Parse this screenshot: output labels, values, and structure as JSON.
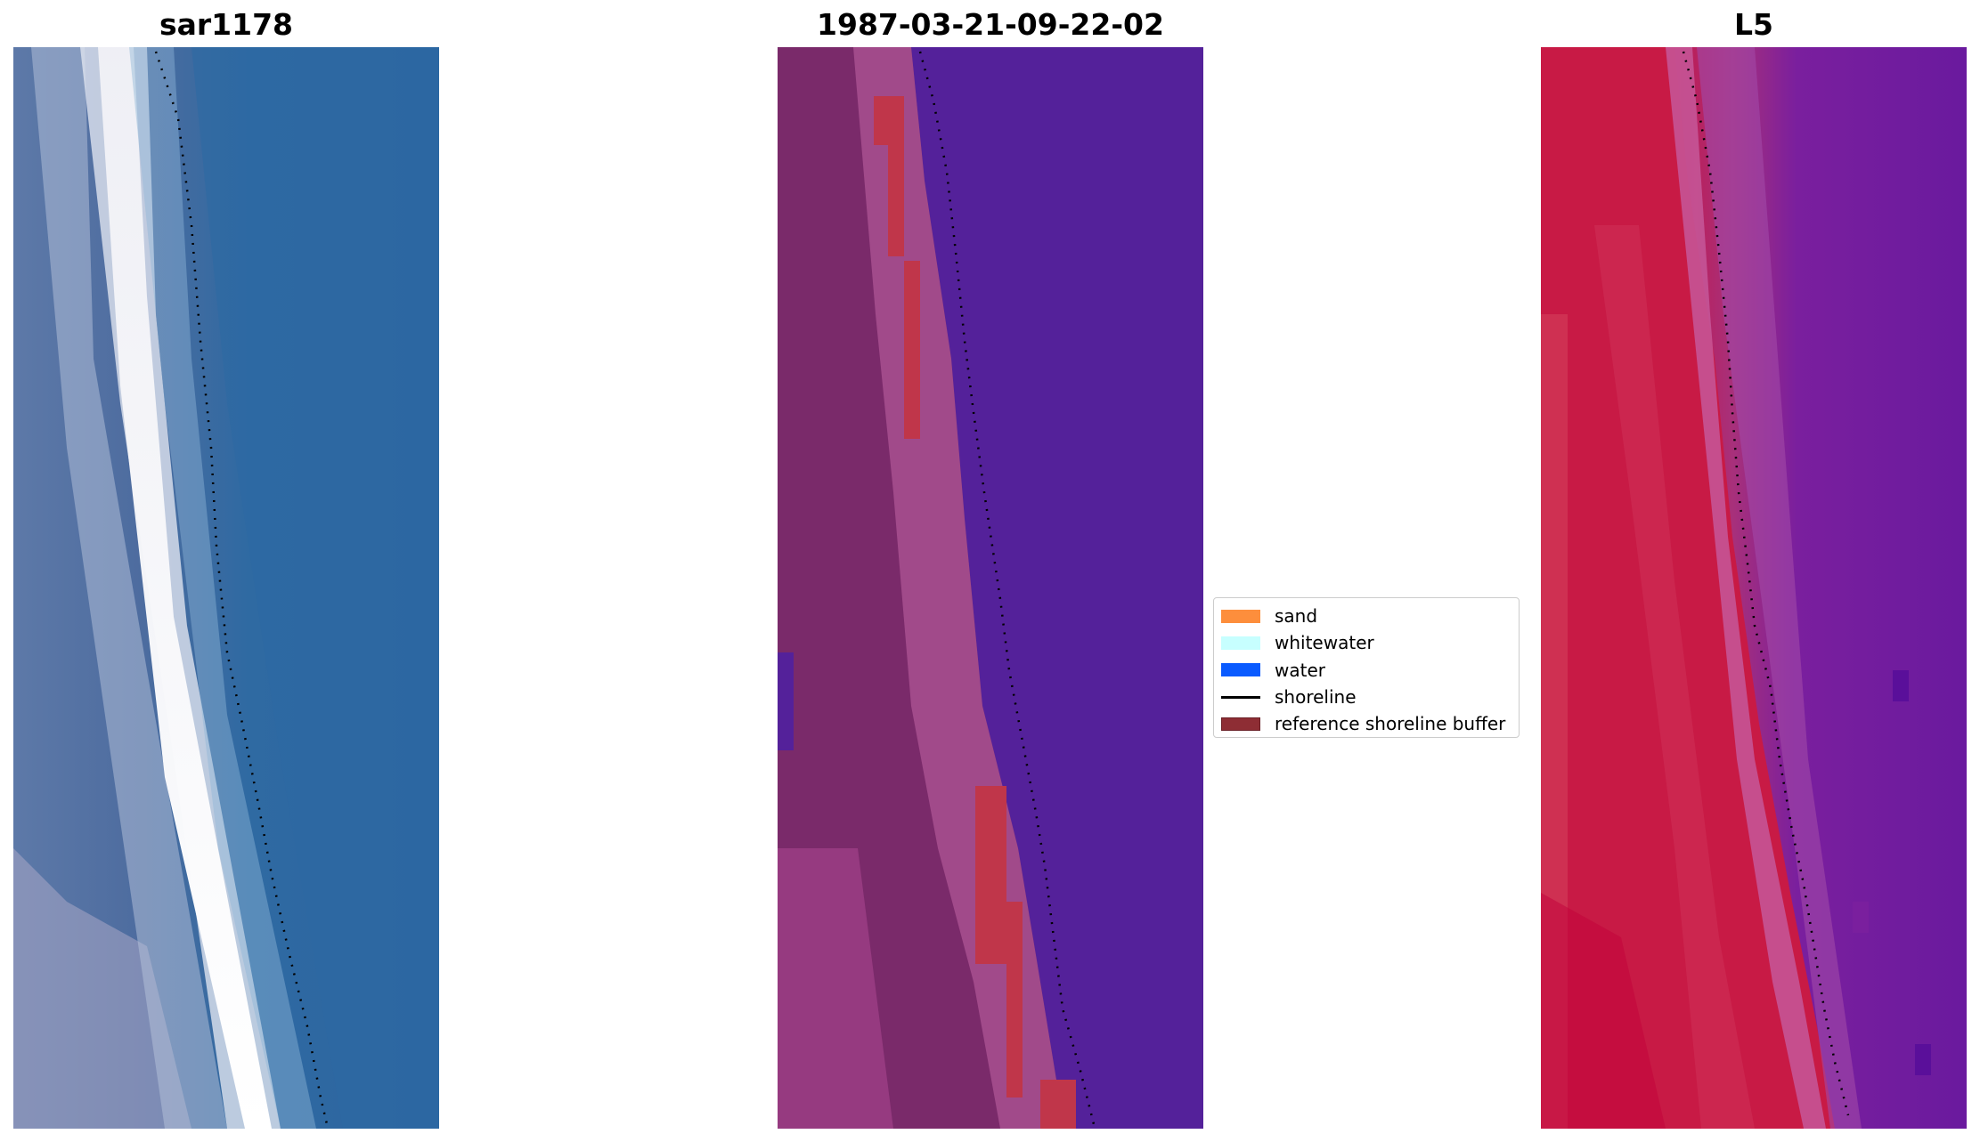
{
  "panels": [
    {
      "title": "sar1178"
    },
    {
      "title": "1987-03-21-09-22-02"
    },
    {
      "title": "L5"
    }
  ],
  "legend": {
    "items": [
      {
        "label": "sand",
        "color": "#fd8e3c",
        "kind": "patch"
      },
      {
        "label": "whitewater",
        "color": "#c7ffff",
        "kind": "patch"
      },
      {
        "label": "water",
        "color": "#0a5bff",
        "kind": "patch"
      },
      {
        "label": "shoreline",
        "color": "#000000",
        "kind": "line"
      },
      {
        "label": "reference shoreline buffer",
        "color": "#8e2d34",
        "kind": "patch"
      }
    ]
  },
  "colors": {
    "sar_water": "#2e66a0",
    "sar_foam": "#f3f2f7",
    "class_land": "#7a2a6a",
    "class_water": "#54219a",
    "class_buffer": "#c0364a",
    "l5_land": "#c8173f",
    "l5_water": "#6b1a9e"
  }
}
